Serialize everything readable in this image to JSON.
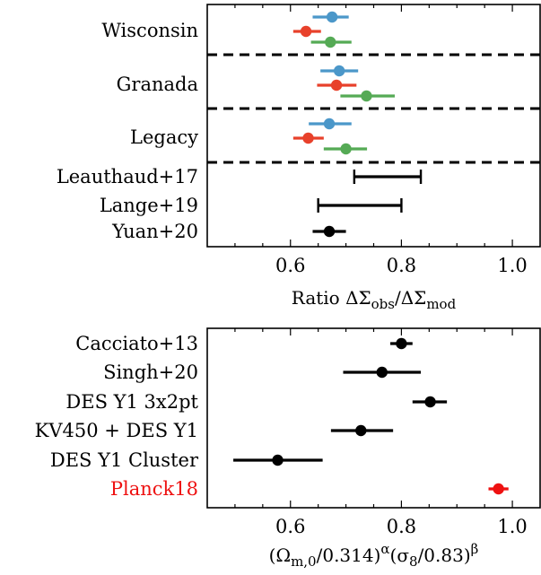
{
  "chart_data": [
    {
      "type": "scatter",
      "xlim": [
        0.45,
        1.05
      ],
      "x_ticks": [
        0.6,
        0.8,
        1.0
      ],
      "x_tick_labels": [
        "0.6",
        "0.8",
        "1.0"
      ],
      "xlabel": "Ratio ΔΣ",
      "xlabel_parts": {
        "sub1": "obs",
        "mid": "/ΔΣ",
        "sub2": "mod"
      },
      "grid": false,
      "groups": [
        {
          "label": "Wisconsin",
          "points": [
            {
              "x": 0.675,
              "xerr_low": 0.64,
              "xerr_high": 0.705,
              "color": "#4b97c9"
            },
            {
              "x": 0.628,
              "xerr_low": 0.605,
              "xerr_high": 0.655,
              "color": "#e8412b"
            },
            {
              "x": 0.672,
              "xerr_low": 0.637,
              "xerr_high": 0.71,
              "color": "#55aa55"
            }
          ]
        },
        {
          "label": "Granada",
          "points": [
            {
              "x": 0.688,
              "xerr_low": 0.654,
              "xerr_high": 0.722,
              "color": "#4b97c9"
            },
            {
              "x": 0.683,
              "xerr_low": 0.648,
              "xerr_high": 0.719,
              "color": "#e8412b"
            },
            {
              "x": 0.737,
              "xerr_low": 0.69,
              "xerr_high": 0.788,
              "color": "#55aa55"
            }
          ]
        },
        {
          "label": "Legacy",
          "points": [
            {
              "x": 0.67,
              "xerr_low": 0.633,
              "xerr_high": 0.71,
              "color": "#4b97c9"
            },
            {
              "x": 0.632,
              "xerr_low": 0.605,
              "xerr_high": 0.66,
              "color": "#e8412b"
            },
            {
              "x": 0.7,
              "xerr_low": 0.66,
              "xerr_high": 0.738,
              "color": "#55aa55"
            }
          ]
        }
      ],
      "references": [
        {
          "label": "Leauthaud+17",
          "x_low": 0.715,
          "x_high": 0.835,
          "marker": false,
          "color": "#000000"
        },
        {
          "label": "Lange+19",
          "x_low": 0.65,
          "x_high": 0.8,
          "marker": false,
          "color": "#000000"
        },
        {
          "label": "Yuan+20",
          "x": 0.67,
          "x_low": 0.64,
          "x_high": 0.7,
          "marker": true,
          "color": "#000000"
        }
      ]
    },
    {
      "type": "scatter",
      "xlim": [
        0.45,
        1.05
      ],
      "x_ticks": [
        0.6,
        0.8,
        1.0
      ],
      "x_tick_labels": [
        "0.6",
        "0.8",
        "1.0"
      ],
      "xlabel_parts": {
        "open": "(Ω",
        "sub1": "m,0",
        "mid1": "/0.314)",
        "sup1": "α",
        "mid2": "(σ",
        "sub2": "8",
        "mid3": "/0.83)",
        "sup2": "β"
      },
      "grid": false,
      "entries": [
        {
          "label": "Cacciato+13",
          "x": 0.8,
          "x_low": 0.78,
          "x_high": 0.82,
          "color": "#000000",
          "label_color": "#000000"
        },
        {
          "label": "Singh+20",
          "x": 0.765,
          "x_low": 0.695,
          "x_high": 0.835,
          "color": "#000000",
          "label_color": "#000000"
        },
        {
          "label": "DES Y1 3x2pt",
          "x": 0.852,
          "x_low": 0.82,
          "x_high": 0.882,
          "color": "#000000",
          "label_color": "#000000"
        },
        {
          "label": "KV450 + DES Y1",
          "x": 0.727,
          "x_low": 0.673,
          "x_high": 0.785,
          "color": "#000000",
          "label_color": "#000000"
        },
        {
          "label": "DES Y1 Cluster",
          "x": 0.577,
          "x_low": 0.497,
          "x_high": 0.658,
          "color": "#000000",
          "label_color": "#000000"
        },
        {
          "label": "Planck18",
          "x": 0.975,
          "x_low": 0.957,
          "x_high": 0.993,
          "color": "#ee1111",
          "label_color": "#ee1111"
        }
      ]
    }
  ]
}
